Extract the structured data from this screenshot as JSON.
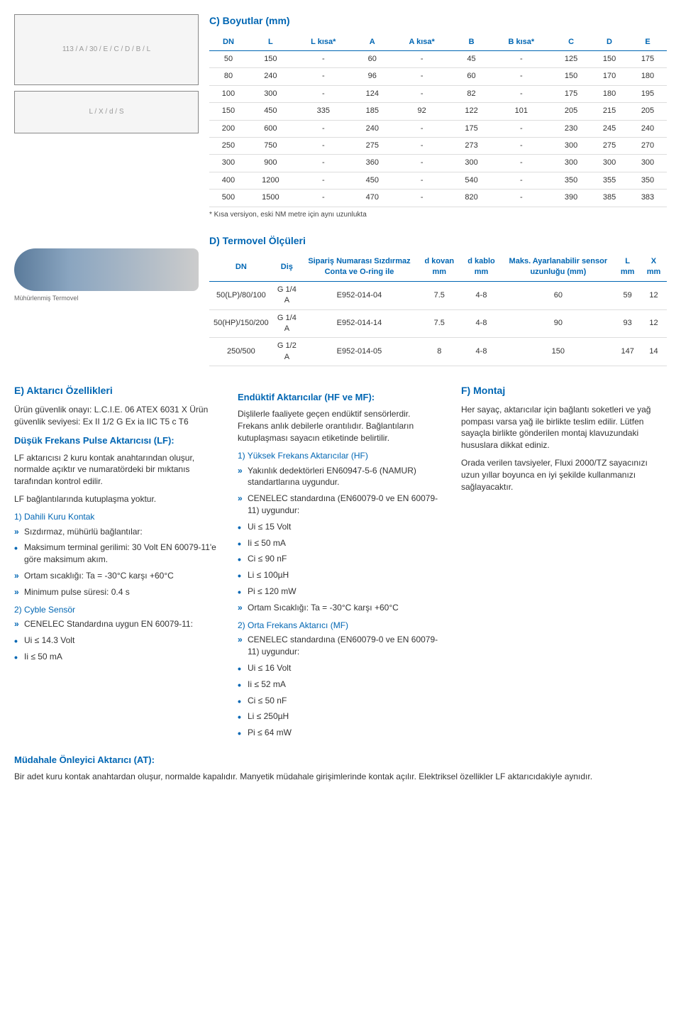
{
  "sectionC": {
    "title": "C) Boyutlar (mm)",
    "columns": [
      "DN",
      "L",
      "L kısa*",
      "A",
      "A kısa*",
      "B",
      "B kısa*",
      "C",
      "D",
      "E"
    ],
    "rows": [
      [
        "50",
        "150",
        "-",
        "60",
        "-",
        "45",
        "-",
        "125",
        "150",
        "175"
      ],
      [
        "80",
        "240",
        "-",
        "96",
        "-",
        "60",
        "-",
        "150",
        "170",
        "180"
      ],
      [
        "100",
        "300",
        "-",
        "124",
        "-",
        "82",
        "-",
        "175",
        "180",
        "195"
      ],
      [
        "150",
        "450",
        "335",
        "185",
        "92",
        "122",
        "101",
        "205",
        "215",
        "205"
      ],
      [
        "200",
        "600",
        "-",
        "240",
        "-",
        "175",
        "-",
        "230",
        "245",
        "240"
      ],
      [
        "250",
        "750",
        "-",
        "275",
        "-",
        "273",
        "-",
        "300",
        "275",
        "270"
      ],
      [
        "300",
        "900",
        "-",
        "360",
        "-",
        "300",
        "-",
        "300",
        "300",
        "300"
      ],
      [
        "400",
        "1200",
        "-",
        "450",
        "-",
        "540",
        "-",
        "350",
        "355",
        "350"
      ],
      [
        "500",
        "1500",
        "-",
        "470",
        "-",
        "820",
        "-",
        "390",
        "385",
        "383"
      ]
    ],
    "note": "* Kısa versiyon, eski NM metre için aynı uzunlukta"
  },
  "sectionD": {
    "title": "D) Termovel Ölçüleri",
    "caption": "Mühürlenmiş Termovel",
    "columns": [
      "DN",
      "Diş",
      "Sipariş Numarası Sızdırmaz Conta ve O-ring ile",
      "d kovan mm",
      "d kablo mm",
      "Maks. Ayarlanabilir sensor uzunluğu (mm)",
      "L mm",
      "X mm"
    ],
    "rows": [
      [
        "50(LP)/80/100",
        "G 1/4 A",
        "E952-014-04",
        "7.5",
        "4-8",
        "60",
        "59",
        "12"
      ],
      [
        "50(HP)/150/200",
        "G 1/4 A",
        "E952-014-14",
        "7.5",
        "4-8",
        "90",
        "93",
        "12"
      ],
      [
        "250/500",
        "G 1/2 A",
        "E952-014-05",
        "8",
        "4-8",
        "150",
        "147",
        "14"
      ]
    ]
  },
  "sectionE": {
    "title": "E) Aktarıcı Özellikleri",
    "intro": "Ürün güvenlik onayı: L.C.I.E. 06 ATEX 6031 X Ürün güvenlik seviyesi:  Ex II 1/2 G Ex ia IIC T5 c T6",
    "lf": {
      "title": "Düşük Frekans Pulse Aktarıcısı (LF):",
      "p1": "LF aktarıcısı 2 kuru kontak anahtarından oluşur, normalde açıktır ve numaratördeki bir mıktanıs tarafından kontrol edilir.",
      "p2": "LF bağlantılarında kutuplaşma yoktur.",
      "s1": {
        "title": "1) Dahili Kuru Kontak",
        "items": [
          {
            "t": "arrow",
            "text": "Sızdırmaz, mühürlü bağlantılar:"
          },
          {
            "t": "bullet",
            "text": "Maksimum terminal gerilimi: 30 Volt EN 60079-11'e göre maksimum akım."
          },
          {
            "t": "arrow",
            "text": "Ortam sıcaklığı: Ta = -30°C karşı +60°C"
          },
          {
            "t": "arrow",
            "text": "Minimum pulse süresi: 0.4 s"
          }
        ]
      },
      "s2": {
        "title": "2) Cyble Sensör",
        "items": [
          {
            "t": "arrow",
            "text": "CENELEC Standardına uygun EN 60079-11:"
          },
          {
            "t": "bullet",
            "text": "Ui ≤ 14.3 Volt"
          },
          {
            "t": "bullet",
            "text": "Ii ≤ 50 mA"
          }
        ]
      }
    },
    "enduktif": {
      "title": "Endüktif Aktarıcılar  (HF ve MF):",
      "p1": "Dişlilerle faaliyete geçen endüktif sensörlerdir. Frekans anlık debilerle orantılıdır. Bağlantıların kutuplaşması sayacın etiketinde belirtilir.",
      "s1": {
        "title": "1) Yüksek Frekans Aktarıcılar (HF)",
        "items": [
          {
            "t": "arrow",
            "text": "Yakınlık dedektörleri EN60947-5-6 (NAMUR) standartlarına uygundur."
          },
          {
            "t": "arrow",
            "text": "CENELEC standardına (EN60079-0 ve EN 60079-11) uygundur:"
          },
          {
            "t": "bullet",
            "text": "Ui ≤ 15 Volt"
          },
          {
            "t": "bullet",
            "text": "Ii ≤ 50 mA"
          },
          {
            "t": "bullet",
            "text": "Ci ≤ 90 nF"
          },
          {
            "t": "bullet",
            "text": "Li ≤ 100µH"
          },
          {
            "t": "bullet",
            "text": "Pi ≤ 120 mW"
          },
          {
            "t": "arrow",
            "text": "Ortam Sıcaklığı: Ta = -30°C karşı +60°C"
          }
        ]
      },
      "s2": {
        "title": "2) Orta Frekans Aktarıcı (MF)",
        "items": [
          {
            "t": "arrow",
            "text": "CENELEC standardına (EN60079-0 ve EN 60079-11) uygundur:"
          },
          {
            "t": "bullet",
            "text": "Ui ≤ 16 Volt"
          },
          {
            "t": "bullet",
            "text": "Ii ≤ 52 mA"
          },
          {
            "t": "bullet",
            "text": "Ci ≤ 50 nF"
          },
          {
            "t": "bullet",
            "text": "Li ≤ 250µH"
          },
          {
            "t": "bullet",
            "text": "Pi ≤ 64 mW"
          }
        ]
      }
    }
  },
  "sectionF": {
    "title": "F) Montaj",
    "p1": "Her sayaç, aktarıcılar için bağlantı soketleri ve yağ pompası varsa yağ ile  birlikte teslim edilir. Lütfen sayaçla birlikte gönderilen montaj klavuzundaki hususlara dikkat ediniz.",
    "p2": "Orada verilen tavsiyeler, Fluxi 2000/TZ sayacınızı uzun yıllar boyunca en iyi şekilde kullanmanızı sağlayacaktır."
  },
  "at": {
    "title": "Müdahale Önleyici Aktarıcı (AT):",
    "p": "Bir adet kuru kontak anahtardan oluşur, normalde kapalıdır. Manyetik müdahale girişimlerinde kontak açılır. Elektriksel özellikler LF aktarıcıdakiyle aynıdır."
  },
  "drawings": {
    "d1_label": "113 / A / 30 / E / C / D / B / L",
    "d2_label": "L / X / d / S"
  }
}
